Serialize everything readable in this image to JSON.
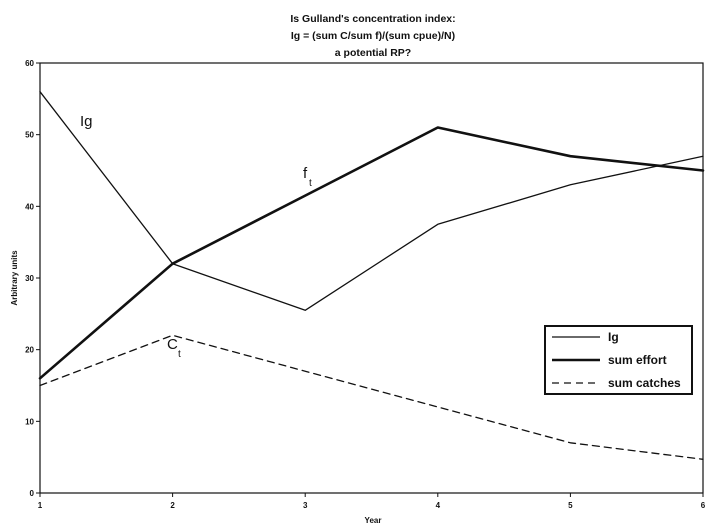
{
  "chart_data": {
    "type": "line",
    "title_lines": [
      "Is Gulland's concentration index:",
      "Ig = (sum C/sum f)/(sum cpue)/N)",
      "a potential RP?"
    ],
    "xlabel": "Year",
    "ylabel": "Arbitrary units",
    "x": [
      1,
      2,
      3,
      4,
      5,
      6
    ],
    "xlim": [
      1,
      6
    ],
    "ylim": [
      0,
      60
    ],
    "y_ticks": [
      0,
      10,
      20,
      30,
      40,
      50,
      60
    ],
    "x_ticks": [
      1,
      2,
      3,
      4,
      5,
      6
    ],
    "grid": false,
    "legend_position": "right",
    "series": [
      {
        "name": "Ig",
        "values": [
          56,
          32,
          25.5,
          37.5,
          43,
          47
        ],
        "style": "thin",
        "color": "#111111"
      },
      {
        "name": "sum effort",
        "values": [
          16,
          32,
          41.5,
          51,
          47,
          45
        ],
        "style": "thick",
        "color": "#111111"
      },
      {
        "name": "sum catches",
        "values": [
          15,
          22,
          17,
          12,
          7,
          4.7
        ],
        "style": "dashed",
        "color": "#111111"
      }
    ],
    "inline_labels": [
      {
        "main": "Ig",
        "sub": ""
      },
      {
        "main": "f",
        "sub": "t"
      },
      {
        "main": "C",
        "sub": "t"
      }
    ]
  }
}
